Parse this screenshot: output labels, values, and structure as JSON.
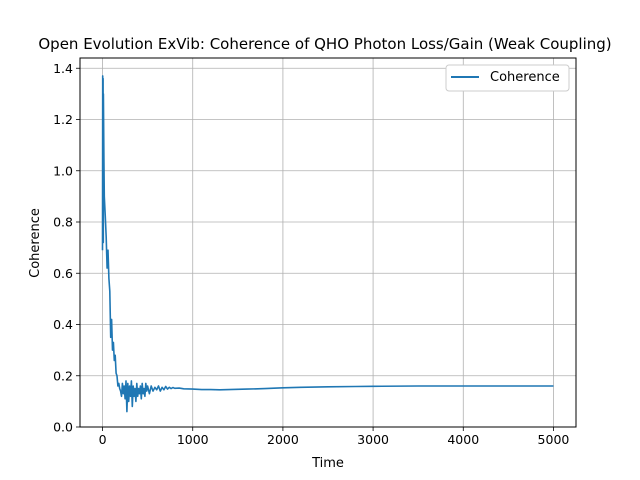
{
  "chart_data": {
    "type": "line",
    "title": "Open Evolution ExVib: Coherence of QHO Photon Loss/Gain (Weak Coupling)",
    "xlabel": "Time",
    "ylabel": "Coherence",
    "xlim": [
      -250,
      5250
    ],
    "ylim": [
      0.0,
      1.44
    ],
    "xticks": [
      0,
      1000,
      2000,
      3000,
      4000,
      5000
    ],
    "xtick_labels": [
      "0",
      "1000",
      "2000",
      "3000",
      "4000",
      "5000"
    ],
    "yticks": [
      0.0,
      0.2,
      0.4,
      0.6,
      0.8,
      1.0,
      1.2,
      1.4
    ],
    "ytick_labels": [
      "0.0",
      "0.2",
      "0.4",
      "0.6",
      "0.8",
      "1.0",
      "1.2",
      "1.4"
    ],
    "grid": true,
    "legend": "top-right",
    "series": [
      {
        "name": "Coherence",
        "color": "#1f77b4",
        "x": [
          0,
          2,
          4,
          6,
          8,
          10,
          15,
          20,
          30,
          40,
          50,
          60,
          70,
          80,
          90,
          100,
          110,
          120,
          130,
          140,
          150,
          160,
          170,
          180,
          190,
          200,
          210,
          220,
          230,
          240,
          250,
          260,
          270,
          280,
          290,
          300,
          310,
          320,
          330,
          340,
          350,
          360,
          370,
          380,
          390,
          400,
          410,
          420,
          430,
          440,
          450,
          460,
          470,
          480,
          490,
          500,
          520,
          540,
          560,
          580,
          600,
          620,
          640,
          660,
          680,
          700,
          720,
          740,
          760,
          780,
          800,
          850,
          900,
          1000,
          1100,
          1200,
          1300,
          1400,
          1500,
          1600,
          1800,
          2000,
          2200,
          2500,
          2800,
          3000,
          3500,
          4000,
          4500,
          5000
        ],
        "y": [
          0.69,
          1.37,
          0.95,
          1.36,
          0.72,
          1.3,
          1.05,
          0.9,
          0.82,
          0.74,
          0.62,
          0.69,
          0.58,
          0.53,
          0.35,
          0.42,
          0.3,
          0.33,
          0.26,
          0.28,
          0.21,
          0.2,
          0.16,
          0.17,
          0.15,
          0.14,
          0.12,
          0.17,
          0.13,
          0.16,
          0.11,
          0.18,
          0.06,
          0.17,
          0.1,
          0.16,
          0.12,
          0.18,
          0.08,
          0.16,
          0.12,
          0.15,
          0.1,
          0.17,
          0.12,
          0.15,
          0.13,
          0.16,
          0.11,
          0.17,
          0.13,
          0.15,
          0.12,
          0.17,
          0.14,
          0.16,
          0.13,
          0.16,
          0.14,
          0.155,
          0.145,
          0.16,
          0.14,
          0.155,
          0.145,
          0.158,
          0.148,
          0.155,
          0.15,
          0.154,
          0.151,
          0.152,
          0.149,
          0.148,
          0.146,
          0.146,
          0.145,
          0.146,
          0.147,
          0.148,
          0.15,
          0.153,
          0.155,
          0.157,
          0.158,
          0.159,
          0.16,
          0.16,
          0.16,
          0.16
        ]
      }
    ]
  }
}
